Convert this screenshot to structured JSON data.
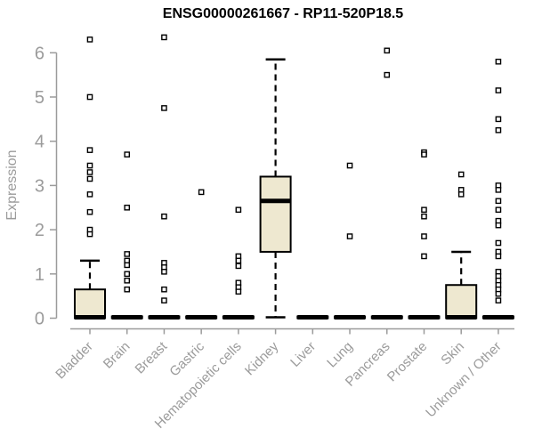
{
  "title": "ENSG00000261667 - RP11-520P18.5",
  "colors": {
    "background": "#ffffff",
    "axis": "#9b9b9b",
    "tick_label": "#9b9b9b",
    "title_text": "#000000",
    "box_fill": "#eee8d0",
    "box_stroke": "#000000",
    "outlier_fill": "#ffffff"
  },
  "chart_data": {
    "type": "boxplot",
    "title": "ENSG00000261667 - RP11-520P18.5",
    "xlabel": "",
    "ylabel": "Expression",
    "ylim": [
      0,
      6
    ],
    "yticks": [
      0,
      1,
      2,
      3,
      4,
      5,
      6
    ],
    "grid": false,
    "legend": false,
    "categories": [
      "Bladder",
      "Brain",
      "Breast",
      "Gastric",
      "Hematopoietic cells",
      "Kidney",
      "Liver",
      "Lung",
      "Pancreas",
      "Prostate",
      "Skin",
      "Unknown / Other"
    ],
    "series": [
      {
        "name": "Bladder",
        "q1": 0,
        "median": 0.02,
        "q3": 0.65,
        "whisker_low": 0,
        "whisker_high": 1.3,
        "outliers": [
          6.3,
          5.0,
          3.8,
          3.45,
          3.3,
          3.15,
          2.8,
          2.4,
          2.0,
          1.9
        ]
      },
      {
        "name": "Brain",
        "q1": 0,
        "median": 0.02,
        "q3": 0.04,
        "whisker_low": 0,
        "whisker_high": 0.04,
        "outliers": [
          3.7,
          2.5,
          1.45,
          1.3,
          1.2,
          1.0,
          0.85,
          0.65
        ]
      },
      {
        "name": "Breast",
        "q1": 0,
        "median": 0.02,
        "q3": 0.04,
        "whisker_low": 0,
        "whisker_high": 0.04,
        "outliers": [
          6.35,
          4.75,
          2.3,
          1.25,
          1.15,
          1.05,
          0.65,
          0.4
        ]
      },
      {
        "name": "Gastric",
        "q1": 0,
        "median": 0.02,
        "q3": 0.04,
        "whisker_low": 0,
        "whisker_high": 0.04,
        "outliers": [
          2.85
        ]
      },
      {
        "name": "Hematopoietic cells",
        "q1": 0,
        "median": 0.02,
        "q3": 0.04,
        "whisker_low": 0,
        "whisker_high": 0.04,
        "outliers": [
          2.45,
          1.4,
          1.3,
          1.18,
          0.8,
          0.7,
          0.6
        ]
      },
      {
        "name": "Kidney",
        "q1": 1.5,
        "median": 2.65,
        "q3": 3.2,
        "whisker_low": 0.02,
        "whisker_high": 5.85,
        "outliers": []
      },
      {
        "name": "Liver",
        "q1": 0,
        "median": 0.02,
        "q3": 0.04,
        "whisker_low": 0,
        "whisker_high": 0.04,
        "outliers": []
      },
      {
        "name": "Lung",
        "q1": 0,
        "median": 0.02,
        "q3": 0.04,
        "whisker_low": 0,
        "whisker_high": 0.04,
        "outliers": [
          3.45,
          1.85
        ]
      },
      {
        "name": "Pancreas",
        "q1": 0,
        "median": 0.02,
        "q3": 0.04,
        "whisker_low": 0,
        "whisker_high": 0.04,
        "outliers": [
          6.05,
          5.5
        ]
      },
      {
        "name": "Prostate",
        "q1": 0,
        "median": 0.02,
        "q3": 0.04,
        "whisker_low": 0,
        "whisker_high": 0.04,
        "outliers": [
          3.75,
          3.7,
          2.45,
          2.3,
          1.85,
          1.4
        ]
      },
      {
        "name": "Skin",
        "q1": 0,
        "median": 0.02,
        "q3": 0.75,
        "whisker_low": 0,
        "whisker_high": 1.5,
        "outliers": [
          3.25,
          2.9,
          2.8
        ]
      },
      {
        "name": "Unknown / Other",
        "q1": 0,
        "median": 0.02,
        "q3": 0.04,
        "whisker_low": 0,
        "whisker_high": 0.04,
        "outliers": [
          5.8,
          5.15,
          4.5,
          4.25,
          3.0,
          2.9,
          2.65,
          2.45,
          2.2,
          2.1,
          1.7,
          1.5,
          1.4,
          1.05,
          0.95,
          0.85,
          0.75,
          0.65,
          0.55,
          0.4
        ]
      }
    ]
  }
}
